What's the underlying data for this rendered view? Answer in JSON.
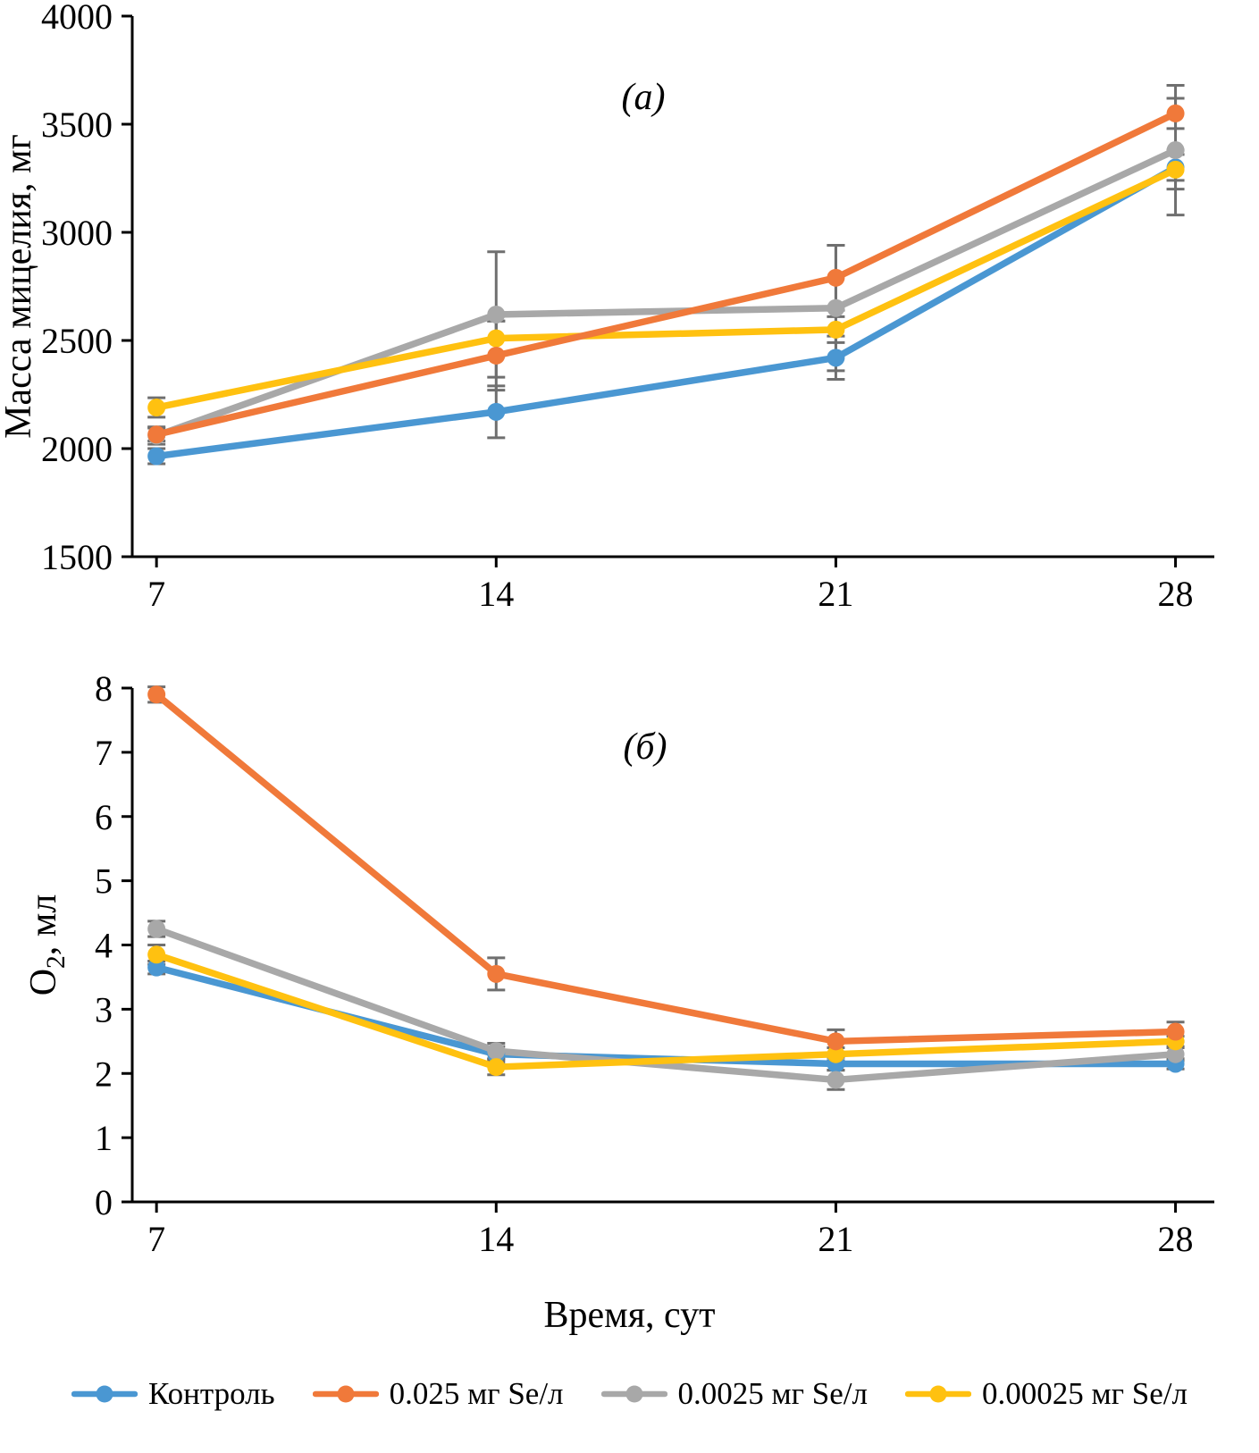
{
  "xlabel": "Время, сут",
  "legend": {
    "items": [
      {
        "key": "control",
        "label": "Контроль",
        "color": "#4A97D2"
      },
      {
        "key": "se-0025",
        "label": "0.025 мг Se/л",
        "color": "#F0793A"
      },
      {
        "key": "se-00025",
        "label": "0.0025 мг Se/л",
        "color": "#A8A8A8"
      },
      {
        "key": "se-000025",
        "label": "0.00025 мг Se/л",
        "color": "#FFC110"
      }
    ]
  },
  "chart_data": [
    {
      "type": "line",
      "panel_label": "(а)",
      "ylabel": "Масса мицелия, мг",
      "xlabel": "Время, сут",
      "x": [
        7,
        14,
        21,
        28
      ],
      "xlim": [
        6.5,
        28.8
      ],
      "ylim": [
        1500,
        4000
      ],
      "ystep": 500,
      "grid": false,
      "series": [
        {
          "name": "Контроль",
          "color": "#4A97D2",
          "values": [
            1965,
            2170,
            2420,
            3300
          ],
          "errors": [
            35,
            120,
            100,
            60
          ]
        },
        {
          "name": "0.025 мг Se/л",
          "color": "#F0793A",
          "values": [
            2065,
            2430,
            2790,
            3550
          ],
          "errors": [
            30,
            160,
            150,
            70
          ]
        },
        {
          "name": "0.0025 мг Se/л",
          "color": "#A8A8A8",
          "values": [
            2060,
            2620,
            2650,
            3380
          ],
          "errors": [
            40,
            290,
            290,
            300
          ]
        },
        {
          "name": "0.00025 мг Se/л",
          "color": "#FFC110",
          "values": [
            2190,
            2510,
            2550,
            3290
          ],
          "errors": [
            45,
            80,
            60,
            90
          ]
        }
      ]
    },
    {
      "type": "line",
      "panel_label": "(б)",
      "ylabel": "O2, мл",
      "ylabel_parts": [
        {
          "text": "O"
        },
        {
          "text": "2",
          "sub": true
        },
        {
          "text": ", мл",
          "after_sub": true
        }
      ],
      "xlabel": "Время, сут",
      "x": [
        7,
        14,
        21,
        28
      ],
      "xlim": [
        6.5,
        28.8
      ],
      "ylim": [
        0,
        8
      ],
      "ystep": 1,
      "grid": false,
      "series": [
        {
          "name": "Контроль",
          "color": "#4A97D2",
          "values": [
            3.65,
            2.3,
            2.15,
            2.15
          ],
          "errors": [
            0.1,
            0.12,
            0.1,
            0.08
          ]
        },
        {
          "name": "0.025 мг Se/л",
          "color": "#F0793A",
          "values": [
            7.9,
            3.55,
            2.5,
            2.65
          ],
          "errors": [
            0.12,
            0.25,
            0.18,
            0.15
          ]
        },
        {
          "name": "0.0025 мг Se/л",
          "color": "#A8A8A8",
          "values": [
            4.25,
            2.35,
            1.9,
            2.3
          ],
          "errors": [
            0.12,
            0.12,
            0.15,
            0.1
          ]
        },
        {
          "name": "0.00025 мг Se/л",
          "color": "#FFC110",
          "values": [
            3.85,
            2.1,
            2.3,
            2.5
          ],
          "errors": [
            0.15,
            0.12,
            0.1,
            0.08
          ]
        }
      ]
    }
  ]
}
